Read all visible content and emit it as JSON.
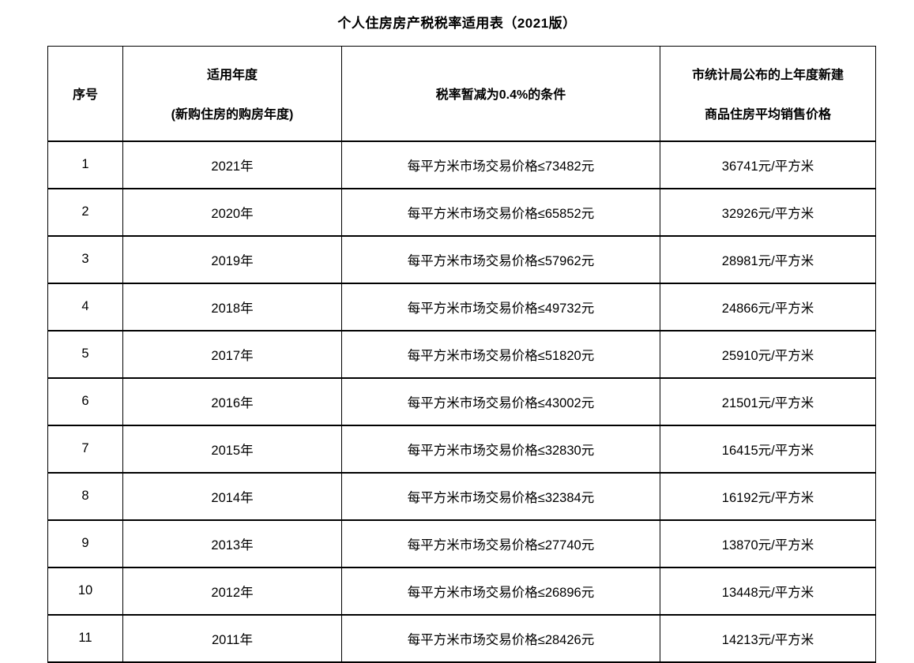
{
  "title": "个人住房房产税税率适用表（2021版）",
  "table": {
    "headers": {
      "serial": "序号",
      "year_title": "适用年度",
      "year_subtitle": "(新购住房的购房年度)",
      "condition": "税率暂减为0.4%的条件",
      "price_line1": "市统计局公布的上年度新建",
      "price_line2": "商品住房平均销售价格"
    },
    "rows": [
      {
        "serial": "1",
        "year": "2021年",
        "condition": "每平方米市场交易价格≤73482元",
        "price": "36741元/平方米"
      },
      {
        "serial": "2",
        "year": "2020年",
        "condition": "每平方米市场交易价格≤65852元",
        "price": "32926元/平方米"
      },
      {
        "serial": "3",
        "year": "2019年",
        "condition": "每平方米市场交易价格≤57962元",
        "price": "28981元/平方米"
      },
      {
        "serial": "4",
        "year": "2018年",
        "condition": "每平方米市场交易价格≤49732元",
        "price": "24866元/平方米"
      },
      {
        "serial": "5",
        "year": "2017年",
        "condition": "每平方米市场交易价格≤51820元",
        "price": "25910元/平方米"
      },
      {
        "serial": "6",
        "year": "2016年",
        "condition": "每平方米市场交易价格≤43002元",
        "price": "21501元/平方米"
      },
      {
        "serial": "7",
        "year": "2015年",
        "condition": "每平方米市场交易价格≤32830元",
        "price": "16415元/平方米"
      },
      {
        "serial": "8",
        "year": "2014年",
        "condition": "每平方米市场交易价格≤32384元",
        "price": "16192元/平方米"
      },
      {
        "serial": "9",
        "year": "2013年",
        "condition": "每平方米市场交易价格≤27740元",
        "price": "13870元/平方米"
      },
      {
        "serial": "10",
        "year": "2012年",
        "condition": "每平方米市场交易价格≤26896元",
        "price": "13448元/平方米"
      },
      {
        "serial": "11",
        "year": "2011年",
        "condition": "每平方米市场交易价格≤28426元",
        "price": "14213元/平方米"
      }
    ]
  }
}
